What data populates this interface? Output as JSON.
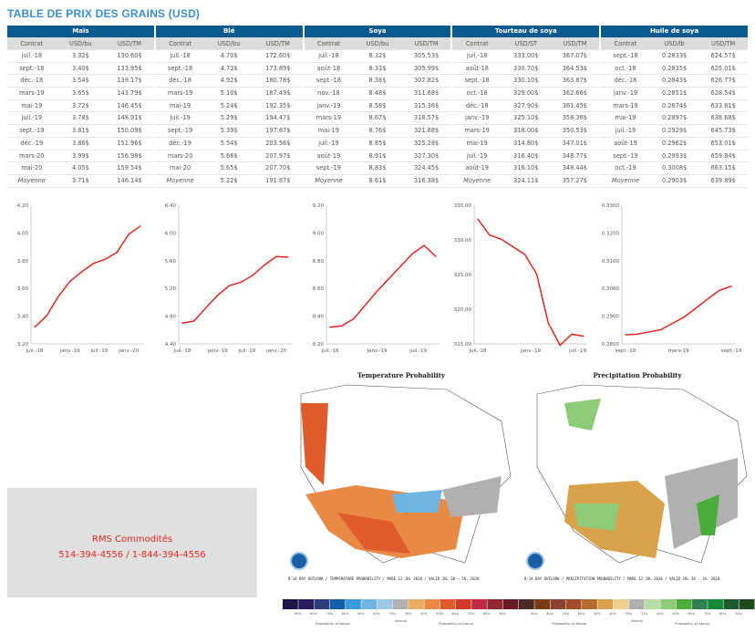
{
  "title": "TABLE DE PRIX DES GRAINS (USD)",
  "tables": [
    {
      "name": "Maïs",
      "cols": [
        "Contrat",
        "USD/bu",
        "USD/TM"
      ],
      "rows": [
        [
          "juil.-18",
          "3.32$",
          "130.60$"
        ],
        [
          "sept.-18",
          "3.40$",
          "133.95$"
        ],
        [
          "déc.-18",
          "3.54$",
          "139.17$"
        ],
        [
          "mars-19",
          "3.65$",
          "143.79$"
        ],
        [
          "mai-19",
          "3.72$",
          "146.45$"
        ],
        [
          "juil.-19",
          "3.78$",
          "148.91$"
        ],
        [
          "sept.-19",
          "3.81$",
          "150.09$"
        ],
        [
          "déc.-19",
          "3.86$",
          "151.96$"
        ],
        [
          "mars-20",
          "3.99$",
          "156.98$"
        ],
        [
          "mai-20",
          "4.05$",
          "159.54$"
        ]
      ],
      "avg": [
        "Moyenne",
        "3.71$",
        "146.14$"
      ]
    },
    {
      "name": "Blé",
      "cols": [
        "Contrat",
        "USD/bu",
        "USD/TM"
      ],
      "rows": [
        [
          "juil.-18",
          "4.70$",
          "172.60$"
        ],
        [
          "sept.-18",
          "4.73$",
          "173.89$"
        ],
        [
          "déc.-18",
          "4.92$",
          "180.78$"
        ],
        [
          "mars-19",
          "5.10$",
          "187.49$"
        ],
        [
          "mai-19",
          "5.24$",
          "192.35$"
        ],
        [
          "juil.-19",
          "5.29$",
          "194.47$"
        ],
        [
          "sept.-19",
          "5.39$",
          "197.87$"
        ],
        [
          "déc.-19",
          "5.54$",
          "203.56$"
        ],
        [
          "mars-20",
          "5.66$",
          "207.97$"
        ],
        [
          "mai-20",
          "5.65$",
          "207.70$"
        ]
      ],
      "avg": [
        "Moyenne",
        "5.22$",
        "191.87$"
      ]
    },
    {
      "name": "Soya",
      "cols": [
        "Contrat",
        "USD/bu",
        "USD/TM"
      ],
      "rows": [
        [
          "juil.-18",
          "8.32$",
          "305.53$"
        ],
        [
          "août-18",
          "8.33$",
          "305.99$"
        ],
        [
          "sept.-18",
          "8.38$",
          "307.82$"
        ],
        [
          "nov.-18",
          "8.48$",
          "311.68$"
        ],
        [
          "janv.-19",
          "8.58$",
          "315.36$"
        ],
        [
          "mars-19",
          "8.67$",
          "318.57$"
        ],
        [
          "mai-19",
          "8.76$",
          "321.88$"
        ],
        [
          "juil.-19",
          "8.85$",
          "325.28$"
        ],
        [
          "août-19",
          "8.91$",
          "327.30$"
        ],
        [
          "sept.-19",
          "8.83$",
          "324.45$"
        ]
      ],
      "avg": [
        "Moyenne",
        "8.61$",
        "316.38$"
      ]
    },
    {
      "name": "Tourteau de soya",
      "cols": [
        "Contrat",
        "USD/ST",
        "USD/TM"
      ],
      "rows": [
        [
          "juil.-18",
          "333.00$",
          "367.07$"
        ],
        [
          "août-18",
          "330.70$",
          "364.53$"
        ],
        [
          "sept.-18",
          "330.10$",
          "363.87$"
        ],
        [
          "oct.-18",
          "329.00$",
          "362.66$"
        ],
        [
          "déc.-18",
          "327.90$",
          "361.45$"
        ],
        [
          "janv.-19",
          "325.10$",
          "358.36$"
        ],
        [
          "mars-19",
          "318.00$",
          "350.53$"
        ],
        [
          "mai-19",
          "314.80$",
          "347.01$"
        ],
        [
          "juil.-19",
          "316.40$",
          "348.77$"
        ],
        [
          "août-19",
          "316.10$",
          "348.44$"
        ]
      ],
      "avg": [
        "Moyenne",
        "324.11$",
        "357.27$"
      ]
    },
    {
      "name": "Huile de soya",
      "cols": [
        "Contrat",
        "USD/lb",
        "USD/TM"
      ],
      "rows": [
        [
          "sept.-18",
          "0.2833$",
          "624.57$"
        ],
        [
          "oct.-18",
          "0.2835$",
          "625.01$"
        ],
        [
          "déc.-18",
          "0.2843$",
          "626.77$"
        ],
        [
          "janv.-19",
          "0.2851$",
          "628.54$"
        ],
        [
          "mars-19",
          "0.2874$",
          "633.61$"
        ],
        [
          "mai-19",
          "0.2897$",
          "638.68$"
        ],
        [
          "juil.-19",
          "0.2929$",
          "645.73$"
        ],
        [
          "août-19",
          "0.2962$",
          "653.01$"
        ],
        [
          "sept.-19",
          "0.2993$",
          "659.84$"
        ],
        [
          "oct.-19",
          "0.3008$",
          "663.15$"
        ]
      ],
      "avg": [
        "Moyenne",
        "0.2903$",
        "639.89$"
      ]
    }
  ],
  "chart_data": [
    {
      "type": "line",
      "title": "Maïs",
      "values": [
        3.32,
        3.4,
        3.54,
        3.65,
        3.72,
        3.78,
        3.81,
        3.86,
        3.99,
        4.05
      ],
      "ylim": [
        3.2,
        4.2
      ],
      "yticks": [
        "3.20",
        "3.40",
        "3.60",
        "3.80",
        "4.00",
        "4.20"
      ],
      "xticks": [
        {
          "i": 0,
          "label": "juil.-18"
        },
        {
          "i": 3,
          "label": "janv.-19"
        },
        {
          "i": 5.5,
          "label": "juil.-19"
        },
        {
          "i": 8,
          "label": "janv.-20"
        }
      ],
      "color": "#e5281f"
    },
    {
      "type": "line",
      "title": "Blé",
      "values": [
        4.7,
        4.73,
        4.92,
        5.1,
        5.24,
        5.29,
        5.39,
        5.54,
        5.66,
        5.65
      ],
      "ylim": [
        4.4,
        6.4
      ],
      "yticks": [
        "4.40",
        "4.80",
        "5.20",
        "5.60",
        "6.00",
        "6.40"
      ],
      "xticks": [
        {
          "i": 0,
          "label": "juil.-18"
        },
        {
          "i": 3,
          "label": "janv.-19"
        },
        {
          "i": 5.5,
          "label": "juil.-19"
        },
        {
          "i": 8,
          "label": "janv.-20"
        }
      ],
      "color": "#e5281f"
    },
    {
      "type": "line",
      "title": "Soya",
      "values": [
        8.32,
        8.33,
        8.38,
        8.48,
        8.58,
        8.67,
        8.76,
        8.85,
        8.91,
        8.83
      ],
      "ylim": [
        8.2,
        9.2
      ],
      "yticks": [
        "8.20",
        "8.40",
        "8.60",
        "8.80",
        "9.00",
        "9.20"
      ],
      "xticks": [
        {
          "i": 0,
          "label": "juil.-18"
        },
        {
          "i": 4,
          "label": "janv.-19"
        },
        {
          "i": 7.5,
          "label": "juil.-19"
        }
      ],
      "color": "#e5281f"
    },
    {
      "type": "line",
      "title": "Tourteau de soya",
      "values": [
        333.0,
        330.7,
        330.1,
        329.0,
        327.9,
        325.1,
        318.0,
        314.8,
        316.4,
        316.1
      ],
      "ylim": [
        315,
        335
      ],
      "yticks": [
        "315.00",
        "320.00",
        "325.00",
        "330.00",
        "335.00"
      ],
      "xticks": [
        {
          "i": 0,
          "label": "juil.-18"
        },
        {
          "i": 4.5,
          "label": "janv.-19"
        },
        {
          "i": 8.5,
          "label": "juil.-19"
        }
      ],
      "color": "#e5281f"
    },
    {
      "type": "line",
      "title": "Huile de soya",
      "values": [
        0.2833,
        0.2835,
        0.2843,
        0.2851,
        0.2874,
        0.2897,
        0.2929,
        0.2962,
        0.2993,
        0.3008
      ],
      "ylim": [
        0.28,
        0.33
      ],
      "yticks": [
        "0.2800",
        "0.2900",
        "0.3000",
        "0.3100",
        "0.3200",
        "0.3300"
      ],
      "xticks": [
        {
          "i": 0,
          "label": "sept.-18"
        },
        {
          "i": 4.5,
          "label": "mars-19"
        },
        {
          "i": 9,
          "label": "sept.-19"
        }
      ],
      "color": "#e5281f"
    }
  ],
  "maps": [
    {
      "title": "Temperature Probability",
      "caption": "8-14 DAY OUTLOOK / TEMPERATURE PROBABILITY / MADE 12 JUL 2018 / VALID JUL 20 - 26, 2018",
      "below": "Probability of Below",
      "normal": "Normal",
      "above": "Probability of Above",
      "scale": [
        "#1c1545",
        "#2a1a5e",
        "#2c3f7a",
        "#1261a6",
        "#3a9ad9",
        "#6fb4e2",
        "#9cc7e6",
        "#b0b0b0",
        "#e8ad62",
        "#e88a45",
        "#e05b2c",
        "#d03a27",
        "#c22a44",
        "#8f2630",
        "#6a1a22"
      ],
      "labels": [
        "90%",
        "80%",
        "70%",
        "60%",
        "50%",
        "40%",
        "33%",
        "33%",
        "40%",
        "50%",
        "60%",
        "70%",
        "80%",
        "90%"
      ]
    },
    {
      "title": "Precipitation Probability",
      "caption": "8-14 DAY OUTLOOK / PRECIPITATION PROBABILITY / MADE 12 JUL 2018 / VALID JUL 20 - 26, 2018",
      "below": "Probability of Below",
      "normal": "Normal",
      "above": "Probability of Above",
      "scale": [
        "#4a2a22",
        "#7a3a12",
        "#8c4030",
        "#a24c2a",
        "#b56a2e",
        "#d9a24a",
        "#efcf8e",
        "#b0b0b0",
        "#b8dca8",
        "#8ecb78",
        "#4aad3a",
        "#2e8050",
        "#128a3a",
        "#1d5a30",
        "#1f4a1a"
      ],
      "labels": [
        "90%",
        "80%",
        "70%",
        "60%",
        "50%",
        "40%",
        "33%",
        "33%",
        "40%",
        "50%",
        "60%",
        "70%",
        "80%",
        "90%"
      ]
    }
  ],
  "contact": {
    "name": "RMS Commodités",
    "phone": "514-394-4556 / 1-844-394-4556"
  }
}
